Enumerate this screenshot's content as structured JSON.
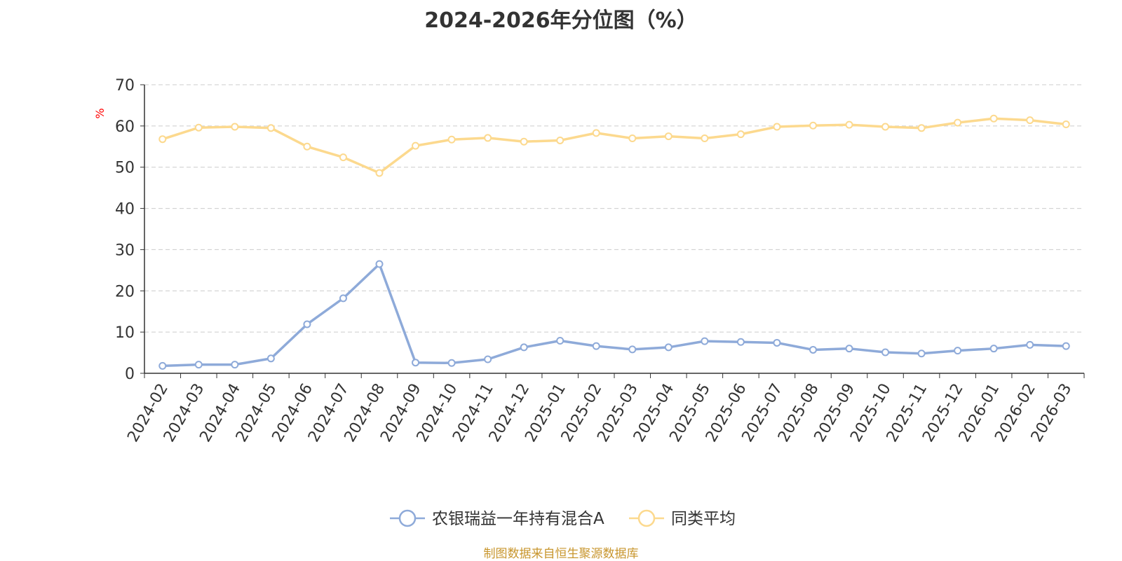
{
  "colors": {
    "series_a": "#8eaad9",
    "series_b": "#fcd98e",
    "axis": "#333333",
    "grid": "#cccccc",
    "yunit": "#ff0000",
    "source": "#c8962e"
  },
  "chart_data": {
    "type": "line",
    "title": "2024-2026年分位图（%）",
    "ylabel": "%",
    "ylim": [
      0,
      70
    ],
    "yticks": [
      "0",
      "10",
      "20",
      "30",
      "40",
      "50",
      "60",
      "70"
    ],
    "grid": true,
    "legend_position": "bottom-center",
    "x": [
      "2024-02",
      "2024-03",
      "2024-04",
      "2024-05",
      "2024-06",
      "2024-07",
      "2024-08",
      "2024-09",
      "2024-10",
      "2024-11",
      "2024-12",
      "2025-01",
      "2025-02",
      "2025-03",
      "2025-04",
      "2025-05",
      "2025-06",
      "2025-07",
      "2025-08",
      "2025-09",
      "2025-10",
      "2025-11",
      "2025-12",
      "2026-01",
      "2026-02",
      "2026-03"
    ],
    "series": [
      {
        "name": "农银瑞益一年持有混合A",
        "values": [
          1.8,
          2.1,
          2.1,
          3.6,
          11.9,
          18.2,
          26.5,
          2.6,
          2.5,
          3.4,
          6.3,
          7.9,
          6.6,
          5.8,
          6.3,
          7.8,
          7.6,
          7.4,
          5.7,
          6.0,
          5.1,
          4.8,
          5.5,
          6.0,
          6.9,
          6.6
        ]
      },
      {
        "name": "同类平均",
        "values": [
          56.8,
          59.6,
          59.8,
          59.5,
          55.0,
          52.4,
          48.6,
          55.2,
          56.7,
          57.1,
          56.2,
          56.5,
          58.3,
          57.0,
          57.5,
          57.0,
          58.0,
          59.8,
          60.1,
          60.3,
          59.8,
          59.5,
          60.8,
          61.8,
          61.4,
          60.4
        ]
      }
    ]
  },
  "source_text": "制图数据来自恒生聚源数据库"
}
